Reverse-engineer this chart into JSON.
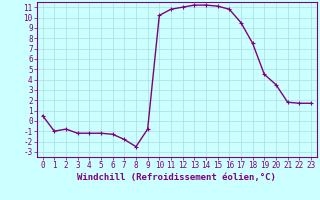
{
  "x": [
    0,
    1,
    2,
    3,
    4,
    5,
    6,
    7,
    8,
    9,
    10,
    11,
    12,
    13,
    14,
    15,
    16,
    17,
    18,
    19,
    20,
    21,
    22,
    23
  ],
  "y": [
    0.5,
    -1.0,
    -0.8,
    -1.2,
    -1.2,
    -1.2,
    -1.3,
    -1.8,
    -2.5,
    -0.8,
    10.2,
    10.8,
    11.0,
    11.2,
    11.2,
    11.1,
    10.8,
    9.5,
    7.5,
    4.5,
    3.5,
    1.8,
    1.7,
    1.7
  ],
  "line_color": "#800080",
  "marker": "+",
  "marker_size": 3,
  "marker_color": "#800080",
  "bg_color": "#ccffff",
  "grid_color": "#aadddd",
  "xlabel": "Windchill (Refroidissement éolien,°C)",
  "xlabel_color": "#800080",
  "xlim": [
    -0.5,
    23.5
  ],
  "ylim": [
    -3.5,
    11.5
  ],
  "yticks": [
    -3,
    -2,
    -1,
    0,
    1,
    2,
    3,
    4,
    5,
    6,
    7,
    8,
    9,
    10,
    11
  ],
  "xticks": [
    0,
    1,
    2,
    3,
    4,
    5,
    6,
    7,
    8,
    9,
    10,
    11,
    12,
    13,
    14,
    15,
    16,
    17,
    18,
    19,
    20,
    21,
    22,
    23
  ],
  "tick_color": "#800080",
  "tick_fontsize": 5.5,
  "xlabel_fontsize": 6.5,
  "linewidth": 1.0
}
